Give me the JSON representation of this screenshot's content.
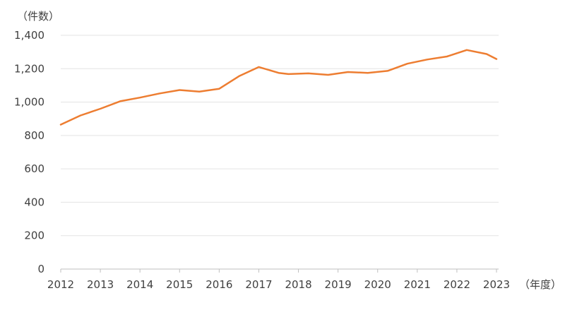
{
  "chart_data": {
    "type": "line",
    "ylabel": "（件数）",
    "xlabel": "（年度）",
    "ylim": [
      0,
      1400
    ],
    "yticks": [
      0,
      200,
      400,
      600,
      800,
      1000,
      1200,
      1400
    ],
    "ytick_labels": [
      "0",
      "200",
      "400",
      "600",
      "800",
      "1,000",
      "1,200",
      "1,400"
    ],
    "xlim": [
      2012,
      2023
    ],
    "xticks": [
      2012,
      2013,
      2014,
      2015,
      2016,
      2017,
      2018,
      2019,
      2020,
      2021,
      2022,
      2023
    ],
    "xtick_labels": [
      "2012",
      "2013",
      "2014",
      "2015",
      "2016",
      "2017",
      "2018",
      "2019",
      "2020",
      "2021",
      "2022",
      "2023"
    ],
    "grid": true,
    "legend": "none",
    "series": [
      {
        "color": "#ed7d31",
        "x": [
          2012.0,
          2012.5,
          2013.0,
          2013.5,
          2014.0,
          2014.5,
          2015.0,
          2015.5,
          2016.0,
          2016.5,
          2017.0,
          2017.5,
          2017.75,
          2018.25,
          2018.75,
          2019.25,
          2019.75,
          2020.25,
          2020.75,
          2021.25,
          2021.75,
          2022.25,
          2022.75,
          2023.0
        ],
        "y": [
          865,
          920,
          960,
          1005,
          1027,
          1052,
          1072,
          1063,
          1080,
          1155,
          1210,
          1175,
          1168,
          1172,
          1163,
          1180,
          1175,
          1187,
          1230,
          1255,
          1273,
          1312,
          1288,
          1258
        ]
      }
    ]
  }
}
